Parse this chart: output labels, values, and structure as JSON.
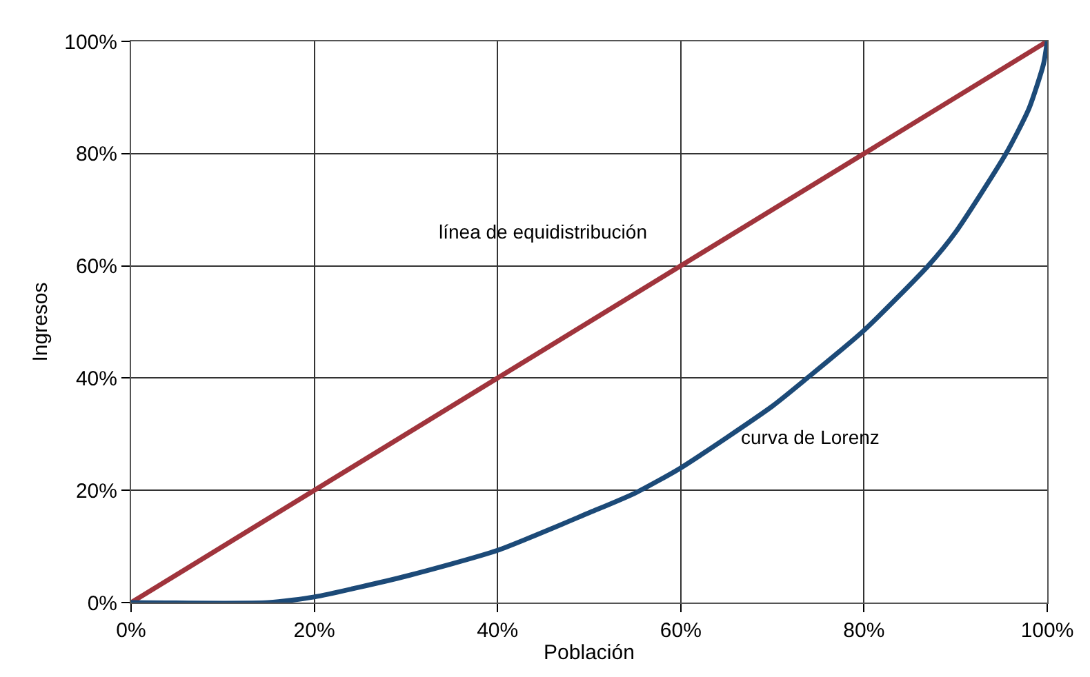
{
  "chart_data": {
    "type": "line",
    "xlabel": "Población",
    "ylabel": "Ingresos",
    "series": [
      {
        "color": "#a0343c",
        "x": [
          0,
          100
        ],
        "values": [
          0,
          100
        ]
      },
      {
        "color": "#1c4a78",
        "x": [
          0,
          15,
          20,
          30,
          40,
          50,
          55,
          60,
          70,
          73.8,
          80,
          87,
          90,
          95.5,
          98,
          99.6,
          100
        ],
        "values": [
          0,
          0,
          1,
          4.7,
          9.3,
          16,
          19.5,
          24,
          35,
          40,
          48.5,
          60,
          66,
          80,
          88,
          96,
          100
        ]
      }
    ],
    "xlim": [
      0,
      100
    ],
    "ylim": [
      0,
      100
    ],
    "xticks": [
      {
        "value": 0,
        "label": "0%"
      },
      {
        "value": 20,
        "label": "20%"
      },
      {
        "value": 40,
        "label": "40%"
      },
      {
        "value": 60,
        "label": "60%"
      },
      {
        "value": 80,
        "label": "80%"
      },
      {
        "value": 100,
        "label": "100%"
      }
    ],
    "yticks": [
      {
        "value": 0,
        "label": "0%"
      },
      {
        "value": 20,
        "label": "20%"
      },
      {
        "value": 40,
        "label": "40%"
      },
      {
        "value": 60,
        "label": "60%"
      },
      {
        "value": 80,
        "label": "80%"
      },
      {
        "value": 100,
        "label": "100%"
      }
    ],
    "annotations": [
      "línea de equidistribución",
      "curva de Lorenz"
    ],
    "grid": true,
    "marker": "none",
    "line_style": "solid"
  }
}
